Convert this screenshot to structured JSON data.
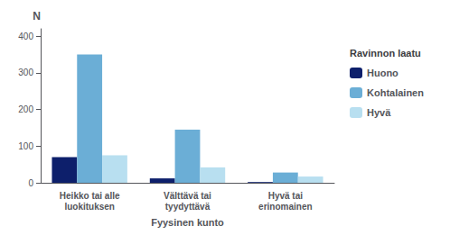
{
  "chart_data": {
    "type": "bar",
    "xlabel": "Fyysinen kunto",
    "ylabel": "N",
    "legend_title": "Ravinnon laatu",
    "categories": [
      "Heikko tai alle\nluokituksen",
      "Välttävä tai\ntyydyttävä",
      "Hyvä tai\nerinomainen"
    ],
    "series": [
      {
        "name": "Huono",
        "color": "#0d1f6b",
        "values": [
          70,
          12,
          2
        ]
      },
      {
        "name": "Kohtalainen",
        "color": "#6baed6",
        "values": [
          350,
          145,
          28
        ]
      },
      {
        "name": "Hyvä",
        "color": "#b8dff0",
        "values": [
          75,
          42,
          17
        ]
      }
    ],
    "ylim": [
      0,
      420
    ],
    "yticks": [
      0,
      100,
      200,
      300,
      400
    ],
    "grid": false,
    "legend": "right"
  }
}
